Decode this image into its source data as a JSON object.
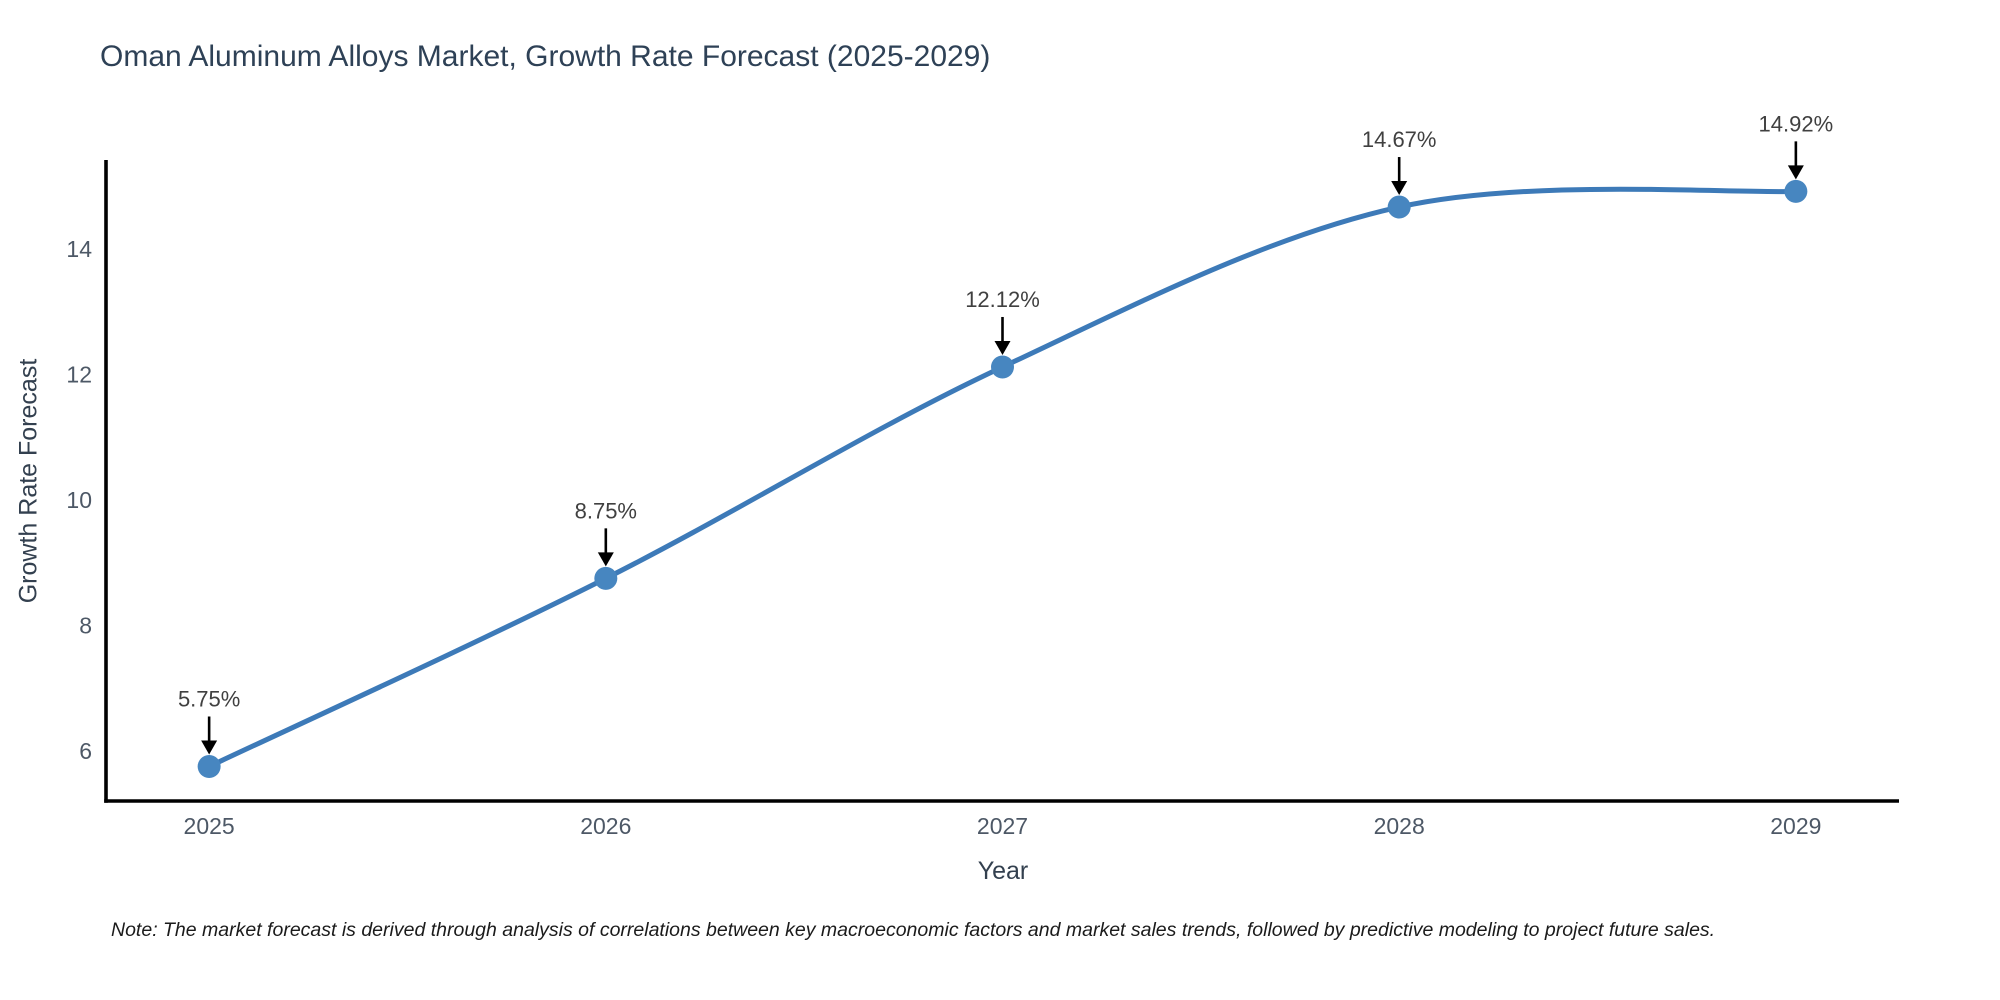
{
  "page": {
    "title": "Oman Aluminum Alloys Market, Growth Rate Forecast (2025-2029)",
    "note": "Note: The market forecast is derived through analysis of correlations between key macroeconomic factors and market sales trends, followed by predictive modeling to project future sales."
  },
  "chart_data": {
    "type": "line",
    "line_shape": "spline",
    "title": "Oman Aluminum Alloys Market, Growth Rate Forecast (2025-2029)",
    "xlabel": "Year",
    "ylabel": "Growth Rate Forecast",
    "x": [
      2025,
      2026,
      2027,
      2028,
      2029
    ],
    "values": [
      5.75,
      8.75,
      12.12,
      14.67,
      14.92
    ],
    "point_labels": [
      "5.75%",
      "8.75%",
      "12.12%",
      "14.67%",
      "14.92%"
    ],
    "xticks": [
      "2025",
      "2026",
      "2027",
      "2028",
      "2029"
    ],
    "yticks": [
      6,
      8,
      10,
      12,
      14
    ],
    "xlim": [
      2024.74,
      2029.26
    ],
    "ylim": [
      5.2,
      15.42
    ],
    "grid": false,
    "legend": "none",
    "annotation_style": "label-with-down-arrow",
    "colors": {
      "line": "#3d7ab8",
      "marker": "#4786c0",
      "axis": "#000000",
      "tick_label": "#4d5866",
      "title": "#2e4156",
      "annotation_text": "#404040",
      "annotation_arrow": "#000000",
      "background": "#ffffff"
    }
  }
}
